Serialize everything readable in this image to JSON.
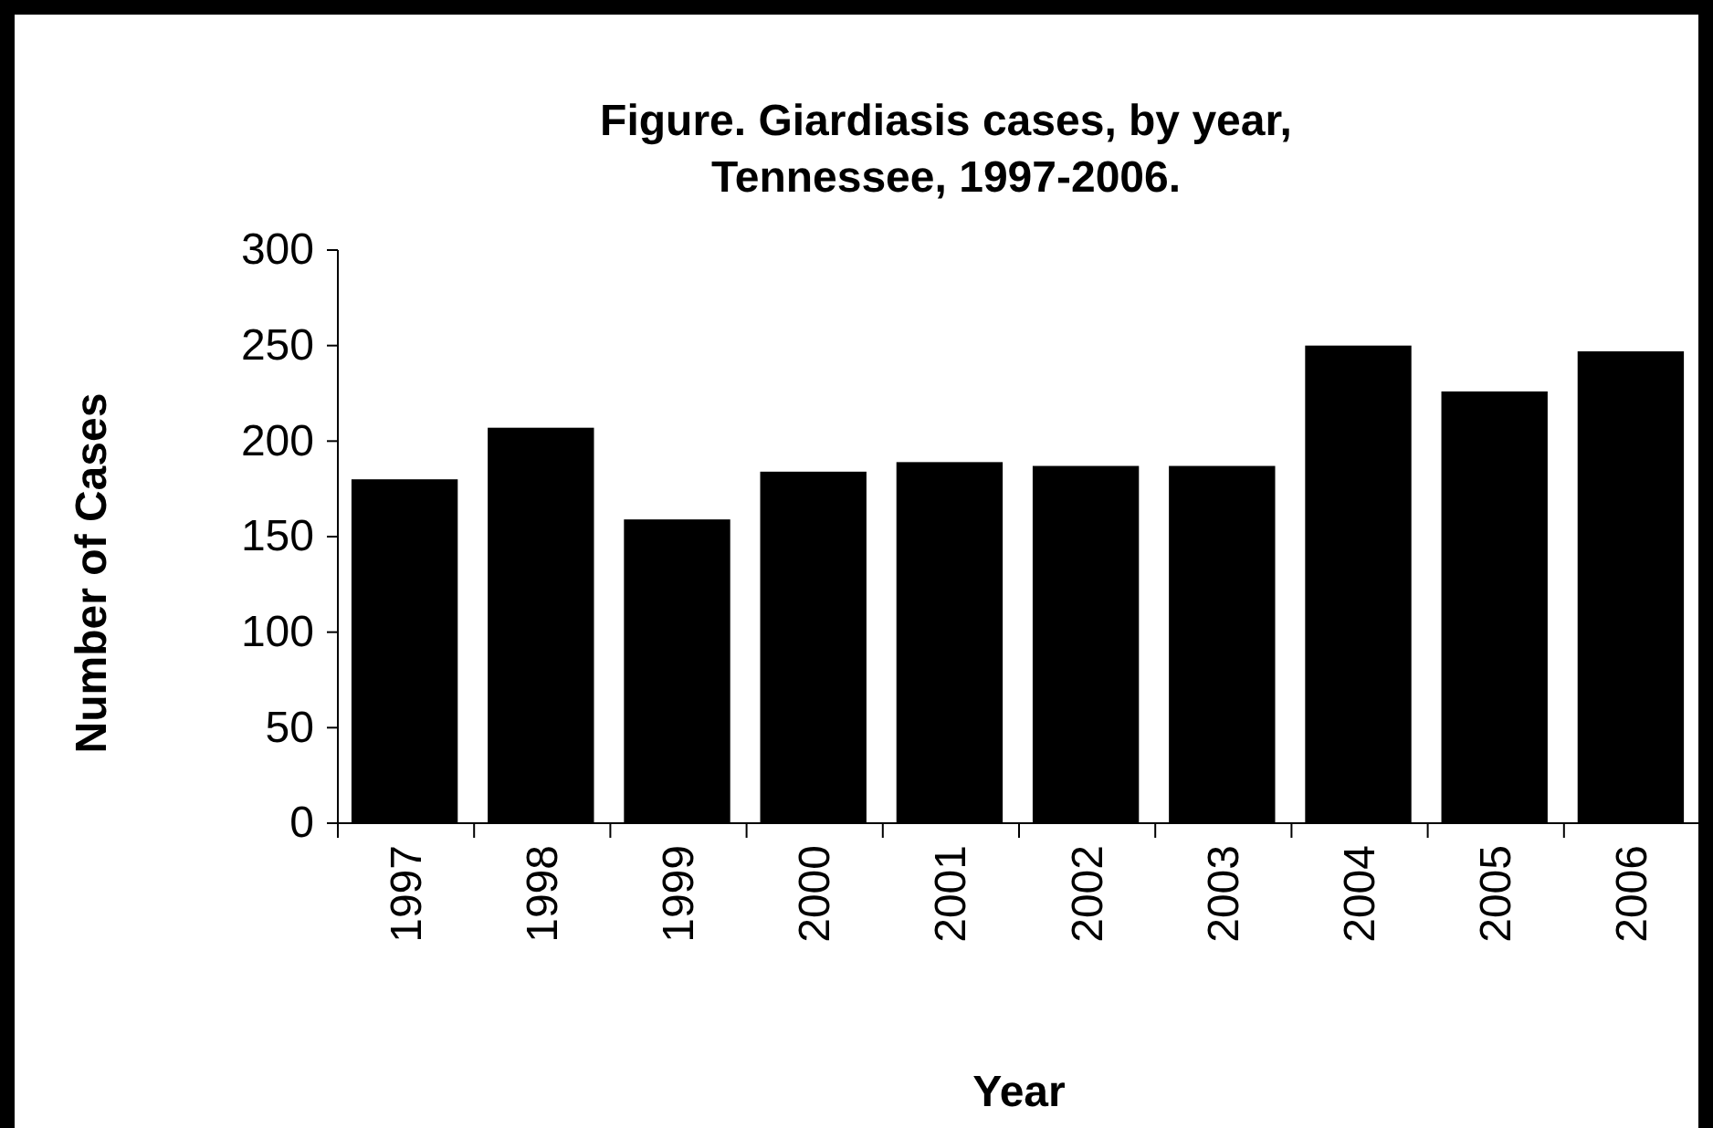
{
  "chart_data": {
    "type": "bar",
    "title": "Figure. Giardiasis cases, by year,\nTennessee, 1997-2006.",
    "xlabel": "Year",
    "ylabel": "Number of Cases",
    "categories": [
      "1997",
      "1998",
      "1999",
      "2000",
      "2001",
      "2002",
      "2003",
      "2004",
      "2005",
      "2006"
    ],
    "values": [
      180,
      207,
      159,
      184,
      189,
      187,
      187,
      250,
      226,
      247
    ],
    "color": "#000000",
    "ylim": [
      0,
      300
    ],
    "yticks": [
      0,
      50,
      100,
      150,
      200,
      250,
      300
    ],
    "grid": false
  }
}
